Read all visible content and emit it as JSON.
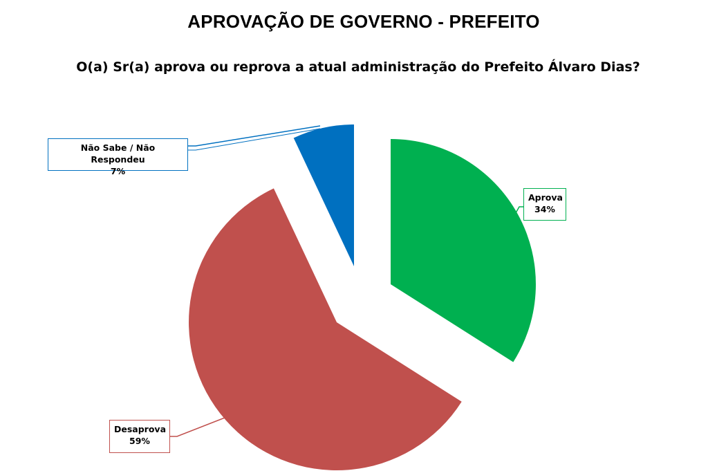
{
  "header": {
    "title": "APROVAÇÃO DE GOVERNO - PREFEITO",
    "question": "O(a) Sr(a) aprova ou reprova a atual administração do Prefeito Álvaro Dias?"
  },
  "chart_data": {
    "type": "pie",
    "exploded": true,
    "slices": [
      {
        "label": "Aprova",
        "value": 34,
        "display": "34%",
        "color": "#00b050"
      },
      {
        "label": "Desaprova",
        "value": 59,
        "display": "59%",
        "color": "#c0504d"
      },
      {
        "label": "Não Sabe / Não Respondeu",
        "value": 7,
        "display": "7%",
        "color": "#0070c0"
      }
    ]
  }
}
